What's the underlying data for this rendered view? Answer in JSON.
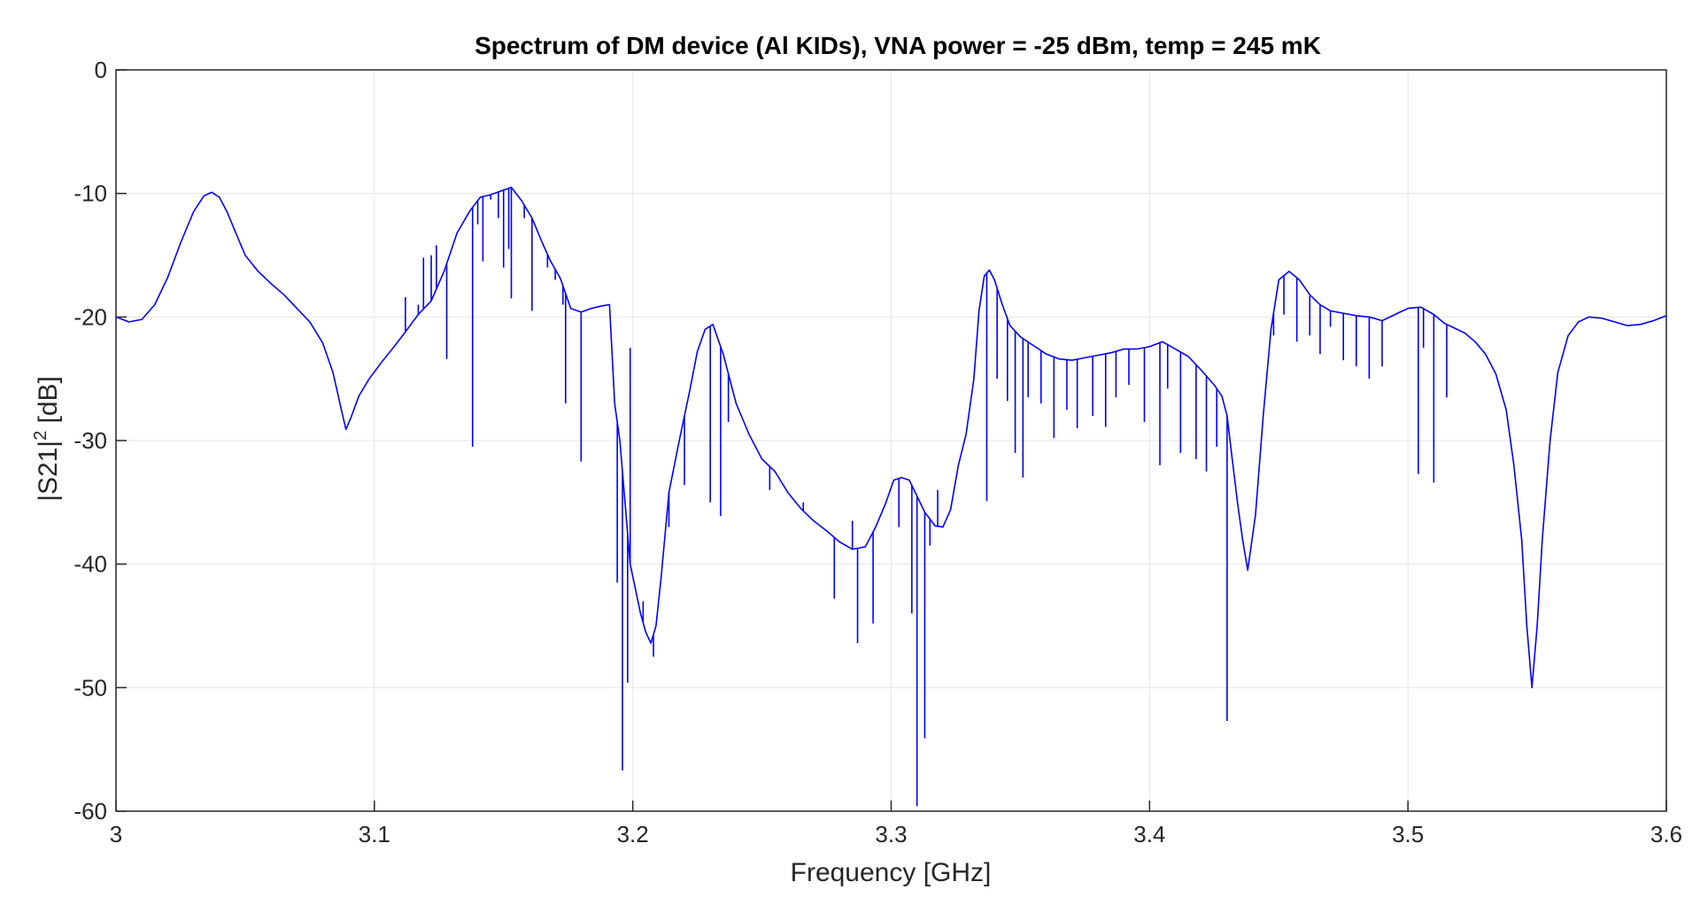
{
  "chart_data": {
    "type": "line",
    "title": "Spectrum of DM device (Al KIDs), VNA power = -25 dBm, temp = 245 mK",
    "xlabel": "Frequency [GHz]",
    "ylabel_main": "|S21|",
    "ylabel_sup": "2",
    "ylabel_tail": " [dB]",
    "xlim": [
      3,
      3.6
    ],
    "ylim": [
      -60,
      0
    ],
    "xticks": [
      3,
      3.1,
      3.2,
      3.3,
      3.4,
      3.5,
      3.6
    ],
    "xtick_labels": [
      "3",
      "3.1",
      "3.2",
      "3.3",
      "3.4",
      "3.5",
      "3.6"
    ],
    "yticks": [
      0,
      -10,
      -20,
      -30,
      -40,
      -50,
      -60
    ],
    "ytick_labels": [
      "0",
      "-10",
      "-20",
      "-30",
      "-40",
      "-50",
      "-60"
    ],
    "grid": true,
    "line_color": "#0000ff",
    "series": [
      {
        "x": [
          3.0,
          3.005,
          3.01,
          3.015,
          3.02,
          3.025,
          3.03,
          3.034,
          3.037,
          3.04,
          3.043,
          3.046,
          3.05,
          3.055,
          3.06,
          3.065,
          3.07,
          3.075,
          3.08,
          3.084,
          3.087,
          3.089,
          3.091,
          3.094,
          3.098,
          3.103,
          3.108,
          3.112,
          3.117,
          3.122,
          3.127,
          3.132,
          3.137,
          3.141,
          3.145,
          3.149,
          3.153,
          3.157,
          3.161,
          3.165,
          3.168,
          3.172,
          3.176,
          3.18,
          3.184,
          3.188,
          3.191,
          3.193,
          3.195,
          3.197,
          3.199,
          3.201,
          3.203,
          3.205,
          3.207,
          3.209,
          3.211,
          3.214,
          3.218,
          3.222,
          3.225,
          3.228,
          3.231,
          3.235,
          3.24,
          3.245,
          3.25,
          3.255,
          3.26,
          3.265,
          3.27,
          3.275,
          3.28,
          3.285,
          3.29,
          3.294,
          3.298,
          3.301,
          3.304,
          3.307,
          3.31,
          3.313,
          3.317,
          3.32,
          3.323,
          3.326,
          3.329,
          3.332,
          3.334,
          3.336,
          3.338,
          3.34,
          3.343,
          3.346,
          3.35,
          3.355,
          3.36,
          3.365,
          3.37,
          3.375,
          3.38,
          3.385,
          3.39,
          3.395,
          3.4,
          3.405,
          3.41,
          3.415,
          3.42,
          3.425,
          3.428,
          3.43,
          3.432,
          3.434,
          3.436,
          3.438,
          3.441,
          3.444,
          3.447,
          3.45,
          3.454,
          3.458,
          3.462,
          3.466,
          3.47,
          3.475,
          3.48,
          3.485,
          3.49,
          3.495,
          3.5,
          3.505,
          3.51,
          3.514,
          3.518,
          3.522,
          3.526,
          3.53,
          3.534,
          3.538,
          3.541,
          3.544,
          3.546,
          3.548,
          3.55,
          3.552,
          3.555,
          3.558,
          3.562,
          3.566,
          3.57,
          3.575,
          3.58,
          3.585,
          3.59,
          3.595,
          3.6
        ],
        "y": [
          -20.0,
          -20.4,
          -20.2,
          -19.0,
          -16.8,
          -14.0,
          -11.5,
          -10.2,
          -9.9,
          -10.3,
          -11.5,
          -13.0,
          -15.0,
          -16.3,
          -17.3,
          -18.2,
          -19.3,
          -20.4,
          -22.1,
          -24.5,
          -27.3,
          -29.1,
          -28.1,
          -26.4,
          -25.0,
          -23.6,
          -22.3,
          -21.2,
          -19.8,
          -18.7,
          -16.3,
          -13.2,
          -11.4,
          -10.3,
          -10.1,
          -9.8,
          -9.5,
          -10.6,
          -12.0,
          -14.0,
          -15.4,
          -16.9,
          -19.3,
          -19.6,
          -19.3,
          -19.1,
          -19.0,
          -27.0,
          -30.0,
          -35.0,
          -40.0,
          -42.0,
          -44.0,
          -45.5,
          -46.4,
          -45.0,
          -41.0,
          -34.2,
          -30.0,
          -26.0,
          -22.8,
          -21.0,
          -20.6,
          -23.0,
          -27.0,
          -29.5,
          -31.5,
          -32.5,
          -34.2,
          -35.5,
          -36.5,
          -37.3,
          -38.2,
          -38.8,
          -38.6,
          -37.0,
          -35.0,
          -33.2,
          -33.0,
          -33.2,
          -34.5,
          -35.8,
          -36.9,
          -37.0,
          -35.6,
          -32.0,
          -29.5,
          -25.0,
          -19.5,
          -16.7,
          -16.2,
          -17.0,
          -19.0,
          -20.7,
          -21.6,
          -22.3,
          -23.0,
          -23.4,
          -23.5,
          -23.3,
          -23.1,
          -22.9,
          -22.6,
          -22.6,
          -22.4,
          -22.0,
          -22.6,
          -23.2,
          -24.3,
          -25.5,
          -26.4,
          -28.0,
          -31.5,
          -35.0,
          -38.0,
          -40.5,
          -36.0,
          -28.0,
          -21.0,
          -17.0,
          -16.3,
          -17.0,
          -18.2,
          -19.0,
          -19.5,
          -19.7,
          -19.9,
          -20.0,
          -20.3,
          -19.8,
          -19.3,
          -19.2,
          -19.8,
          -20.5,
          -20.9,
          -21.3,
          -22.0,
          -23.0,
          -24.6,
          -27.5,
          -32.0,
          -38.0,
          -45.0,
          -50.0,
          -45.0,
          -38.0,
          -30.0,
          -24.5,
          -21.5,
          -20.4,
          -20.0,
          -20.1,
          -20.4,
          -20.7,
          -20.6,
          -20.3,
          -19.9
        ]
      }
    ],
    "resonance_dips": [
      [
        3.112,
        -18.4
      ],
      [
        3.117,
        -19.0
      ],
      [
        3.119,
        -15.2
      ],
      [
        3.122,
        -15.0
      ],
      [
        3.124,
        -14.2
      ],
      [
        3.128,
        -23.4
      ],
      [
        3.13,
        -14.5
      ],
      [
        3.138,
        -30.5
      ],
      [
        3.14,
        -12.5
      ],
      [
        3.142,
        -15.5
      ],
      [
        3.145,
        -10.5
      ],
      [
        3.148,
        -12.0
      ],
      [
        3.15,
        -16.0
      ],
      [
        3.152,
        -14.5
      ],
      [
        3.153,
        -18.5
      ],
      [
        3.158,
        -12.0
      ],
      [
        3.161,
        -19.5
      ],
      [
        3.167,
        -16.0
      ],
      [
        3.17,
        -17.0
      ],
      [
        3.173,
        -19.0
      ],
      [
        3.174,
        -27.0
      ],
      [
        3.18,
        -31.7
      ],
      [
        3.194,
        -41.5
      ],
      [
        3.196,
        -56.7
      ],
      [
        3.198,
        -49.6
      ],
      [
        3.199,
        -22.5
      ],
      [
        3.204,
        -43.0
      ],
      [
        3.208,
        -47.5
      ],
      [
        3.214,
        -37.0
      ],
      [
        3.22,
        -33.6
      ],
      [
        3.23,
        -35.0
      ],
      [
        3.234,
        -36.1
      ],
      [
        3.237,
        -28.5
      ],
      [
        3.253,
        -34.0
      ],
      [
        3.266,
        -35.0
      ],
      [
        3.278,
        -42.8
      ],
      [
        3.285,
        -36.5
      ],
      [
        3.287,
        -46.4
      ],
      [
        3.293,
        -44.8
      ],
      [
        3.303,
        -37.0
      ],
      [
        3.308,
        -44.0
      ],
      [
        3.31,
        -59.6
      ],
      [
        3.313,
        -54.1
      ],
      [
        3.315,
        -38.5
      ],
      [
        3.318,
        -34.0
      ],
      [
        3.337,
        -34.9
      ],
      [
        3.341,
        -25.0
      ],
      [
        3.345,
        -26.8
      ],
      [
        3.348,
        -31.0
      ],
      [
        3.351,
        -33.0
      ],
      [
        3.353,
        -26.5
      ],
      [
        3.358,
        -27.0
      ],
      [
        3.363,
        -29.8
      ],
      [
        3.368,
        -27.5
      ],
      [
        3.372,
        -29.0
      ],
      [
        3.378,
        -28.0
      ],
      [
        3.383,
        -28.9
      ],
      [
        3.387,
        -26.5
      ],
      [
        3.392,
        -25.5
      ],
      [
        3.398,
        -28.5
      ],
      [
        3.404,
        -32.0
      ],
      [
        3.407,
        -25.8
      ],
      [
        3.412,
        -31.0
      ],
      [
        3.418,
        -31.5
      ],
      [
        3.422,
        -32.5
      ],
      [
        3.426,
        -30.5
      ],
      [
        3.43,
        -52.7
      ],
      [
        3.448,
        -21.5
      ],
      [
        3.452,
        -19.8
      ],
      [
        3.457,
        -22.0
      ],
      [
        3.462,
        -21.5
      ],
      [
        3.466,
        -23.0
      ],
      [
        3.47,
        -20.8
      ],
      [
        3.475,
        -23.5
      ],
      [
        3.48,
        -24.0
      ],
      [
        3.485,
        -25.0
      ],
      [
        3.49,
        -24.0
      ],
      [
        3.504,
        -32.7
      ],
      [
        3.506,
        -22.5
      ],
      [
        3.51,
        -33.4
      ],
      [
        3.515,
        -26.5
      ]
    ]
  }
}
